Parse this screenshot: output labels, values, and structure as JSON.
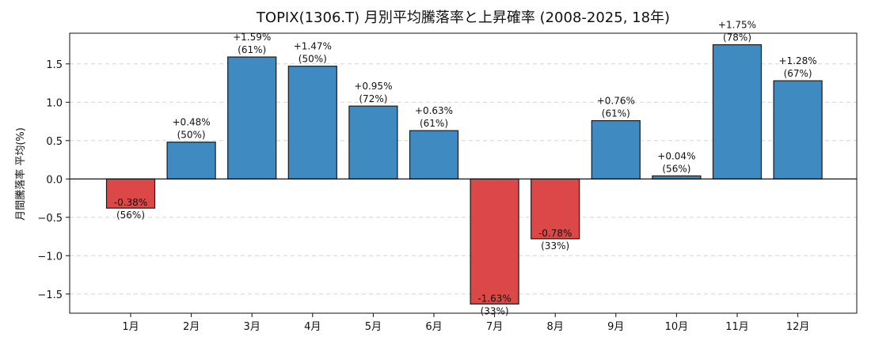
{
  "chart_data": {
    "type": "bar",
    "title": "TOPIX(1306.T) 月別平均騰落率と上昇確率 (2008-2025, 18年)",
    "xlabel": "",
    "ylabel": "月間騰落率 平均(%)",
    "categories": [
      "1月",
      "2月",
      "3月",
      "4月",
      "5月",
      "6月",
      "7月",
      "8月",
      "9月",
      "10月",
      "11月",
      "12月"
    ],
    "values": [
      -0.38,
      0.48,
      1.59,
      1.47,
      0.95,
      0.63,
      -1.63,
      -0.78,
      0.76,
      0.04,
      1.75,
      1.28
    ],
    "value_labels": [
      "-0.38%",
      "+0.48%",
      "+1.59%",
      "+1.47%",
      "+0.95%",
      "+0.63%",
      "-1.63%",
      "-0.78%",
      "+0.76%",
      "+0.04%",
      "+1.75%",
      "+1.28%"
    ],
    "up_probability_labels": [
      "(56%)",
      "(50%)",
      "(61%)",
      "(50%)",
      "(72%)",
      "(61%)",
      "(33%)",
      "(33%)",
      "(61%)",
      "(56%)",
      "(78%)",
      "(67%)"
    ],
    "ylim": [
      -1.75,
      1.9
    ],
    "yticks": [
      -1.5,
      -1.0,
      -0.5,
      0.0,
      0.5,
      1.0,
      1.5
    ],
    "ytick_labels": [
      "−1.5",
      "−1.0",
      "−0.5",
      "0.0",
      "0.5",
      "1.0",
      "1.5"
    ],
    "grid": "y-dashed",
    "colors": {
      "positive": "#3f8bc1",
      "negative": "#dc4848",
      "edge": "#1a1a1a",
      "grid": "#d6d6d6"
    }
  }
}
